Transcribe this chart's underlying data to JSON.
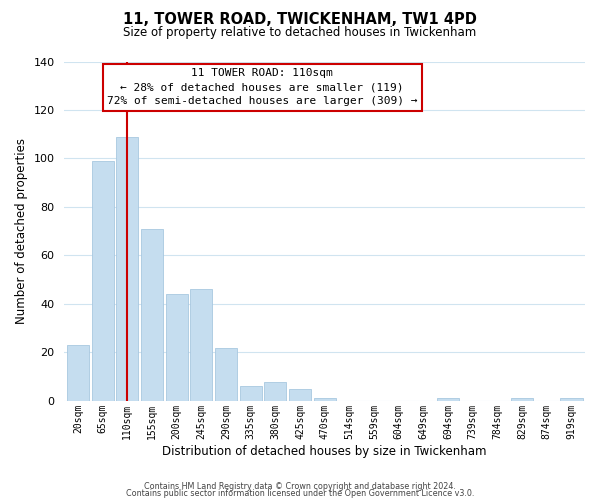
{
  "title": "11, TOWER ROAD, TWICKENHAM, TW1 4PD",
  "subtitle": "Size of property relative to detached houses in Twickenham",
  "xlabel": "Distribution of detached houses by size in Twickenham",
  "ylabel": "Number of detached properties",
  "bar_labels": [
    "20sqm",
    "65sqm",
    "110sqm",
    "155sqm",
    "200sqm",
    "245sqm",
    "290sqm",
    "335sqm",
    "380sqm",
    "425sqm",
    "470sqm",
    "514sqm",
    "559sqm",
    "604sqm",
    "649sqm",
    "694sqm",
    "739sqm",
    "784sqm",
    "829sqm",
    "874sqm",
    "919sqm"
  ],
  "bar_values": [
    23,
    99,
    109,
    71,
    44,
    46,
    22,
    6,
    8,
    5,
    1,
    0,
    0,
    0,
    0,
    1,
    0,
    0,
    1,
    0,
    1
  ],
  "bar_color": "#c5ddef",
  "bar_edge_color": "#a8c8e0",
  "marker_index": 2,
  "marker_color": "#cc0000",
  "annotation_title": "11 TOWER ROAD: 110sqm",
  "annotation_line1": "← 28% of detached houses are smaller (119)",
  "annotation_line2": "72% of semi-detached houses are larger (309) →",
  "annotation_box_color": "#ffffff",
  "annotation_box_edge": "#cc0000",
  "ylim": [
    0,
    140
  ],
  "yticks": [
    0,
    20,
    40,
    60,
    80,
    100,
    120,
    140
  ],
  "grid_color": "#d0e4f0",
  "footnote1": "Contains HM Land Registry data © Crown copyright and database right 2024.",
  "footnote2": "Contains public sector information licensed under the Open Government Licence v3.0."
}
